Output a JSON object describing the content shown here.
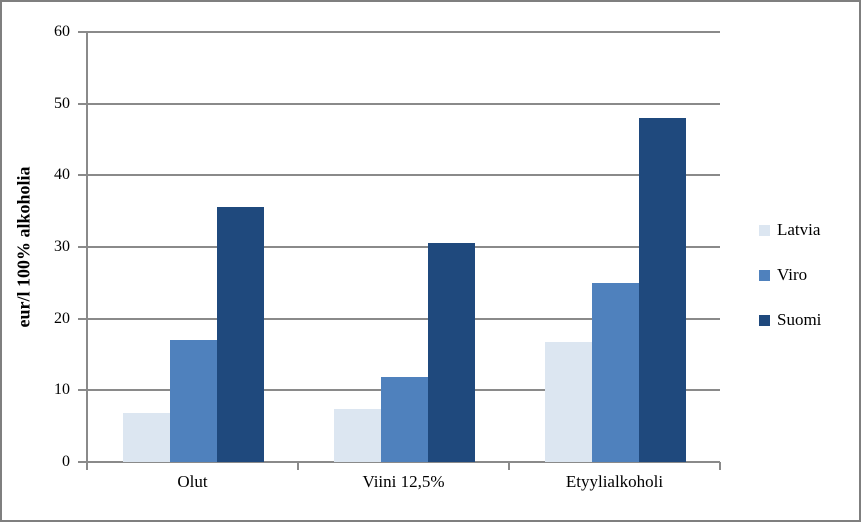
{
  "chart_data": {
    "type": "bar",
    "ylabel": "eur/l 100% alkoholia",
    "categories": [
      "Olut",
      "Viini 12,5%",
      "Etyylialkoholi"
    ],
    "series": [
      {
        "name": "Latvia",
        "color": "#DCE6F1",
        "values": [
          6.8,
          7.4,
          16.8
        ]
      },
      {
        "name": "Viro",
        "color": "#4F81BD",
        "values": [
          17,
          11.8,
          25
        ]
      },
      {
        "name": "Suomi",
        "color": "#1F497D",
        "values": [
          35.6,
          30.5,
          48
        ]
      }
    ],
    "ylim": [
      0,
      60
    ],
    "yticks": [
      0,
      10,
      20,
      30,
      40,
      50,
      60
    ],
    "grid": true,
    "legend_position": "right",
    "colors": {
      "gridline": "#8a8a8a",
      "axis": "#8a8a8a",
      "figure_border": "#7f7f7f",
      "background": "#ffffff",
      "text": "#000000"
    }
  }
}
